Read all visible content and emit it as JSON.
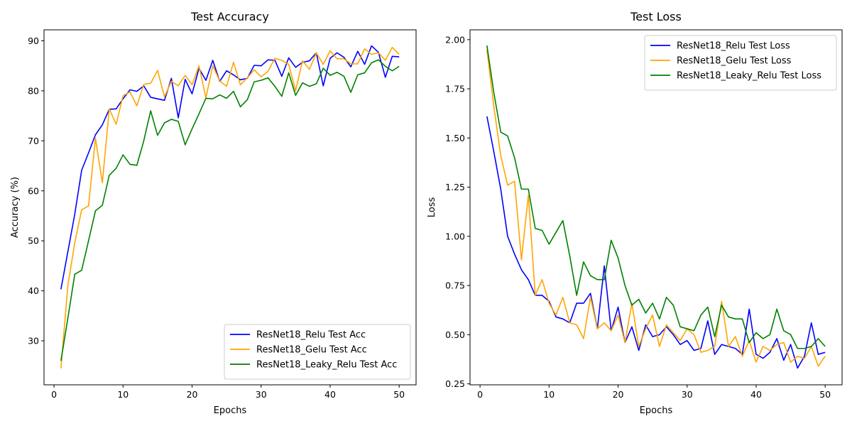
{
  "chart_data": [
    {
      "type": "line",
      "title": "Test Accuracy",
      "xlabel": "Epochs",
      "ylabel": "Accuracy (%)",
      "xlim": [
        -1.45,
        52.45
      ],
      "ylim": [
        21.2,
        92.2
      ],
      "xticks": [
        0,
        10,
        20,
        30,
        40,
        50
      ],
      "yticks": [
        30,
        40,
        50,
        60,
        70,
        80,
        90
      ],
      "legend_position": "lower-right",
      "grid": false,
      "x": [
        1,
        2,
        3,
        4,
        5,
        6,
        7,
        8,
        9,
        10,
        11,
        12,
        13,
        14,
        15,
        16,
        17,
        18,
        19,
        20,
        21,
        22,
        23,
        24,
        25,
        26,
        27,
        28,
        29,
        30,
        31,
        32,
        33,
        34,
        35,
        36,
        37,
        38,
        39,
        40,
        41,
        42,
        43,
        44,
        45,
        46,
        47,
        48,
        49,
        50
      ],
      "series": [
        {
          "name": "ResNet18_Relu Test Acc",
          "color": "#0000ff",
          "values": [
            40.3,
            47.8,
            55.3,
            64.1,
            67.6,
            71.2,
            73.2,
            76.3,
            76.4,
            78.4,
            80.2,
            79.9,
            81.0,
            78.7,
            78.4,
            78.1,
            82.5,
            74.6,
            82.3,
            79.4,
            84.5,
            82.1,
            86.1,
            81.9,
            84.0,
            83.2,
            82.2,
            82.5,
            85.1,
            85.0,
            86.2,
            86.1,
            82.9,
            86.6,
            84.7,
            85.7,
            86.0,
            87.6,
            81.0,
            86.5,
            87.6,
            86.7,
            84.8,
            87.9,
            85.3,
            89.0,
            87.7,
            82.7,
            86.9,
            86.8
          ]
        },
        {
          "name": "ResNet18_Gelu Test Acc",
          "color": "#ffa500",
          "values": [
            24.5,
            41.0,
            49.6,
            56.2,
            57.0,
            70.5,
            61.6,
            76.4,
            73.3,
            79.0,
            79.8,
            77.0,
            81.3,
            81.5,
            84.1,
            78.8,
            81.9,
            81.0,
            83.1,
            81.2,
            85.0,
            78.6,
            85.0,
            82.0,
            80.9,
            85.7,
            81.2,
            82.6,
            84.2,
            82.8,
            83.9,
            86.5,
            86.1,
            85.3,
            80.0,
            86.0,
            84.3,
            87.6,
            85.3,
            88.0,
            86.4,
            86.4,
            85.4,
            85.4,
            88.4,
            87.3,
            87.6,
            86.1,
            88.7,
            87.3
          ]
        },
        {
          "name": "ResNet18_Leaky_Relu Test Acc",
          "color": "#008000",
          "values": [
            26.0,
            34.5,
            43.3,
            44.1,
            50.0,
            56.0,
            57.1,
            63.1,
            64.5,
            67.2,
            65.3,
            65.1,
            70.0,
            76.0,
            71.1,
            73.6,
            74.3,
            73.9,
            69.2,
            72.4,
            75.4,
            78.5,
            78.4,
            79.2,
            78.5,
            79.9,
            76.8,
            78.2,
            81.8,
            82.1,
            82.6,
            80.9,
            78.9,
            83.6,
            79.1,
            81.6,
            80.9,
            81.4,
            84.5,
            83.1,
            83.7,
            82.9,
            79.7,
            83.2,
            83.6,
            85.6,
            86.2,
            84.9,
            84.0,
            84.9
          ]
        }
      ]
    },
    {
      "type": "line",
      "title": "Test Loss",
      "xlabel": "Epochs",
      "ylabel": "Loss",
      "xlim": [
        -1.45,
        52.45
      ],
      "ylim": [
        0.245,
        2.05
      ],
      "xticks": [
        0,
        10,
        20,
        30,
        40,
        50
      ],
      "yticks": [
        0.25,
        0.5,
        0.75,
        1.0,
        1.25,
        1.5,
        1.75,
        2.0
      ],
      "ytick_format": "2",
      "legend_position": "top-right",
      "grid": false,
      "x": [
        1,
        2,
        3,
        4,
        5,
        6,
        7,
        8,
        9,
        10,
        11,
        12,
        13,
        14,
        15,
        16,
        17,
        18,
        19,
        20,
        21,
        22,
        23,
        24,
        25,
        26,
        27,
        28,
        29,
        30,
        31,
        32,
        33,
        34,
        35,
        36,
        37,
        38,
        39,
        40,
        41,
        42,
        43,
        44,
        45,
        46,
        47,
        48,
        49,
        50
      ],
      "series": [
        {
          "name": "ResNet18_Relu Test Loss",
          "color": "#0000ff",
          "values": [
            1.61,
            1.43,
            1.24,
            1.0,
            0.91,
            0.83,
            0.78,
            0.7,
            0.7,
            0.67,
            0.59,
            0.58,
            0.56,
            0.66,
            0.66,
            0.71,
            0.53,
            0.85,
            0.52,
            0.64,
            0.46,
            0.54,
            0.42,
            0.55,
            0.49,
            0.5,
            0.54,
            0.5,
            0.45,
            0.47,
            0.42,
            0.43,
            0.57,
            0.4,
            0.45,
            0.44,
            0.43,
            0.4,
            0.63,
            0.4,
            0.38,
            0.41,
            0.48,
            0.37,
            0.45,
            0.33,
            0.39,
            0.56,
            0.4,
            0.41
          ]
        },
        {
          "name": "ResNet18_Gelu Test Loss",
          "color": "#ffa500",
          "values": [
            1.95,
            1.66,
            1.41,
            1.26,
            1.28,
            0.88,
            1.21,
            0.7,
            0.78,
            0.66,
            0.6,
            0.69,
            0.56,
            0.55,
            0.48,
            0.69,
            0.53,
            0.56,
            0.52,
            0.6,
            0.46,
            0.66,
            0.44,
            0.53,
            0.6,
            0.44,
            0.55,
            0.51,
            0.47,
            0.53,
            0.5,
            0.41,
            0.42,
            0.44,
            0.67,
            0.44,
            0.49,
            0.39,
            0.47,
            0.36,
            0.44,
            0.42,
            0.45,
            0.46,
            0.36,
            0.39,
            0.38,
            0.44,
            0.34,
            0.39
          ]
        },
        {
          "name": "ResNet18_Leaky_Relu Test Loss",
          "color": "#008000",
          "values": [
            1.97,
            1.73,
            1.53,
            1.51,
            1.4,
            1.24,
            1.24,
            1.04,
            1.03,
            0.96,
            1.02,
            1.08,
            0.9,
            0.7,
            0.87,
            0.8,
            0.78,
            0.78,
            0.98,
            0.89,
            0.75,
            0.65,
            0.68,
            0.61,
            0.66,
            0.58,
            0.69,
            0.65,
            0.54,
            0.53,
            0.52,
            0.6,
            0.64,
            0.49,
            0.65,
            0.59,
            0.58,
            0.58,
            0.46,
            0.51,
            0.48,
            0.5,
            0.63,
            0.52,
            0.5,
            0.43,
            0.43,
            0.44,
            0.48,
            0.44
          ]
        }
      ]
    }
  ]
}
